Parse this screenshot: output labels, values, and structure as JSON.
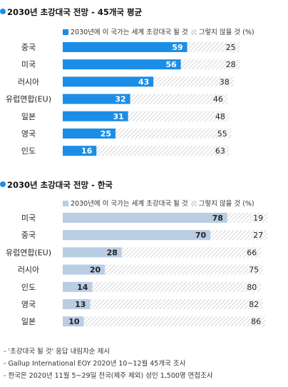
{
  "colors": {
    "bullet": "#1a8ee6",
    "world_bar": "#1a8ee6",
    "korea_bar": "#b9cde3",
    "hatch": "#bdbdbd",
    "world_value_text": "#ffffff",
    "korea_value_text": "#222222"
  },
  "panels": [
    {
      "title": "2030년 초강대국 전망 - 45개국 평균",
      "legend": {
        "yes_label": "2030년에 이 국가는 세계 초강대국 될 것",
        "no_label": "그렇지 않을 것 (%)"
      }
    },
    {
      "title": "2030년 초강대국 전망 - 한국",
      "legend": {
        "yes_label": "2030년에 이 국가는 세계 초강대국 될 것",
        "no_label": "그렇지 않을 것 (%)"
      }
    }
  ],
  "chart_data": [
    {
      "type": "bar",
      "orientation": "horizontal",
      "stacked": true,
      "title": "2030년 초강대국 전망 - 45개국 평균",
      "categories": [
        "중국",
        "미국",
        "러시아",
        "유럽연합(EU)",
        "일본",
        "영국",
        "인도"
      ],
      "series": [
        {
          "name": "2030년에 이 국가는 세계 초강대국 될 것",
          "values": [
            59,
            56,
            43,
            32,
            31,
            25,
            16
          ],
          "color": "#1a8ee6"
        },
        {
          "name": "그렇지 않을 것 (%)",
          "values": [
            25,
            28,
            38,
            46,
            48,
            55,
            63
          ],
          "color": "hatched-gray"
        }
      ],
      "xlim": [
        0,
        100
      ]
    },
    {
      "type": "bar",
      "orientation": "horizontal",
      "stacked": true,
      "title": "2030년 초강대국 전망 - 한국",
      "categories": [
        "미국",
        "중국",
        "유럽연합(EU)",
        "러시아",
        "인도",
        "영국",
        "일본"
      ],
      "series": [
        {
          "name": "2030년에 이 국가는 세계 초강대국 될 것",
          "values": [
            78,
            70,
            28,
            20,
            14,
            13,
            10
          ],
          "color": "#b9cde3"
        },
        {
          "name": "그렇지 않을 것 (%)",
          "values": [
            19,
            27,
            66,
            75,
            80,
            82,
            86
          ],
          "color": "hatched-gray"
        }
      ],
      "xlim": [
        0,
        100
      ]
    }
  ],
  "footnotes": [
    "- '초강대국 될 것' 응답 내림차순 제시",
    "- Gallup International EOY 2020년 10~12월 45개국 조사",
    "- 한국은 2020년 11월 5~29일 전국(제주 제외) 성인 1,500명 면접조사"
  ]
}
